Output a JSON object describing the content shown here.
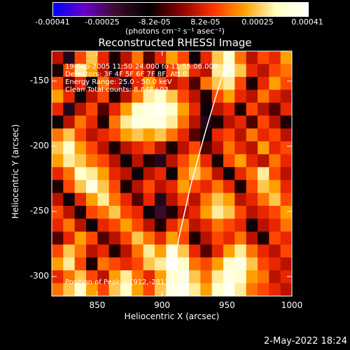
{
  "colorbar": {
    "tick_labels": [
      "-0.00041",
      "-0.00025",
      "-8.2e-05",
      "8.2e-05",
      "0.00025",
      "0.00041"
    ],
    "tick_values": [
      -0.00041,
      -0.00025,
      -8.2e-05,
      8.2e-05,
      0.00025,
      0.00041
    ],
    "range": [
      -0.00041,
      0.00041
    ],
    "units": "(photons cm⁻² s⁻¹ asec⁻²)",
    "colormap": [
      "#0000ff",
      "#6a00c8",
      "#3a0a2a",
      "#000000",
      "#8a0000",
      "#ff3000",
      "#ffa000",
      "#ffffc0",
      "#ffffff"
    ]
  },
  "chart_data": {
    "type": "heatmap",
    "title": "Reconstructed RHESSI Image",
    "xlabel": "Heliocentric X (arcsec)",
    "ylabel": "Heliocentric Y (arcsec)",
    "xlim": [
      815,
      1000
    ],
    "ylim": [
      -315,
      -127
    ],
    "xticks": [
      850,
      900,
      950,
      1000
    ],
    "yticks": [
      -150,
      -200,
      -250,
      -300
    ],
    "annotations": [
      "19-Sep-2005 11:50:24.000 to 11:55:08.000",
      "Detectors: 3F 4F 5F 6F 7F 8F, Att 0",
      "Energy Range: 25.0 - 50.0 keV",
      "Clean    Total counts: 8.84E+03"
    ],
    "peak_label": "Position of Peak = [912,-281]",
    "peak": [
      912,
      -281
    ],
    "limb_curve": {
      "x": [
        906,
        913,
        922,
        933,
        945,
        954
      ],
      "y": [
        -315,
        -270,
        -230,
        -190,
        -150,
        -127
      ]
    },
    "grid": [
      [
        0.1,
        -0.4,
        0.3,
        0.6,
        0.2,
        -0.2,
        0.1,
        0.4,
        -0.1,
        0.2,
        0.5,
        0.3,
        -0.3,
        0.2,
        0.6,
        0.8,
        0.4,
        0.1,
        0.3,
        0.2,
        0.5
      ],
      [
        -0.2,
        0.3,
        0.7,
        0.5,
        0.1,
        -0.3,
        0.2,
        0.3,
        0.1,
        -0.2,
        0.3,
        0.6,
        0.2,
        0.1,
        0.7,
        0.9,
        0.6,
        0.2,
        0.1,
        0.3,
        0.4
      ],
      [
        0.3,
        -0.1,
        0.2,
        -0.3,
        0.4,
        0.1,
        -0.4,
        0.2,
        0.5,
        0.3,
        0.1,
        0.2,
        -0.1,
        0.4,
        0.6,
        0.7,
        0.3,
        -0.2,
        0.2,
        0.5,
        0.3
      ],
      [
        0.5,
        0.2,
        -0.3,
        0.1,
        0.3,
        -0.2,
        0.1,
        0.4,
        0.7,
        0.8,
        0.6,
        0.3,
        0.1,
        -0.2,
        0.3,
        0.5,
        0.2,
        0.1,
        0.4,
        0.2,
        0.1
      ],
      [
        0.2,
        -0.4,
        0.1,
        0.3,
        -0.1,
        0.2,
        0.5,
        0.8,
        0.9,
        0.95,
        0.8,
        0.5,
        0.2,
        -0.3,
        0.1,
        0.2,
        -0.2,
        0.3,
        0.1,
        -0.1,
        0.2
      ],
      [
        -0.3,
        0.1,
        0.4,
        0.2,
        -0.2,
        0.4,
        0.7,
        0.9,
        0.85,
        0.9,
        0.7,
        0.4,
        0.1,
        -0.4,
        -0.2,
        0.1,
        0.2,
        -0.1,
        0.3,
        0.1,
        -0.2
      ],
      [
        0.4,
        0.6,
        0.3,
        0.1,
        0.2,
        0.3,
        0.5,
        0.6,
        0.5,
        0.6,
        0.4,
        0.2,
        -0.1,
        -0.3,
        0.2,
        0.3,
        0.1,
        0.4,
        0.2,
        0.3,
        0.1
      ],
      [
        0.6,
        0.8,
        0.5,
        0.3,
        0.1,
        -0.2,
        0.1,
        0.2,
        0.3,
        0.1,
        -0.2,
        0.1,
        0.3,
        -0.1,
        0.1,
        0.4,
        0.2,
        0.1,
        0.5,
        0.2,
        0.3
      ],
      [
        0.5,
        0.7,
        0.6,
        0.4,
        0.3,
        0.1,
        -0.3,
        0.1,
        -0.2,
        -0.4,
        0.1,
        0.3,
        0.5,
        0.2,
        -0.2,
        0.3,
        0.5,
        0.2,
        0.1,
        0.4,
        0.2
      ],
      [
        0.2,
        0.4,
        0.8,
        0.7,
        0.5,
        0.2,
        0.1,
        -0.3,
        0.1,
        0.2,
        -0.3,
        0.4,
        0.6,
        0.4,
        0.1,
        -0.3,
        0.2,
        0.4,
        0.7,
        0.3,
        0.1
      ],
      [
        -0.2,
        0.3,
        0.6,
        0.9,
        0.6,
        0.3,
        -0.2,
        0.1,
        0.3,
        0.1,
        0.2,
        0.5,
        0.3,
        0.2,
        0.4,
        0.2,
        -0.2,
        0.3,
        0.6,
        0.5,
        0.2
      ],
      [
        0.1,
        -0.3,
        0.2,
        0.5,
        0.7,
        0.4,
        0.2,
        -0.1,
        0.2,
        -0.4,
        0.1,
        0.3,
        0.1,
        0.4,
        0.6,
        0.5,
        0.1,
        0.2,
        0.4,
        0.6,
        0.3
      ],
      [
        0.3,
        0.1,
        -0.2,
        0.3,
        0.4,
        0.6,
        0.3,
        0.2,
        -0.3,
        -0.5,
        -0.2,
        0.1,
        0.2,
        0.5,
        0.7,
        0.6,
        0.3,
        0.1,
        0.2,
        0.3,
        0.5
      ],
      [
        0.2,
        0.4,
        0.1,
        -0.3,
        0.2,
        0.3,
        0.5,
        0.3,
        0.1,
        -0.2,
        0.2,
        0.4,
        0.1,
        0.2,
        0.4,
        0.3,
        0.2,
        -0.3,
        0.1,
        0.2,
        0.4
      ],
      [
        -0.1,
        0.2,
        0.5,
        0.3,
        -0.1,
        0.1,
        0.3,
        0.6,
        0.4,
        0.2,
        0.5,
        0.3,
        -0.2,
        0.1,
        0.3,
        0.2,
        0.4,
        0.1,
        -0.2,
        0.3,
        0.2
      ],
      [
        0.3,
        0.6,
        0.4,
        0.1,
        0.2,
        -0.2,
        0.1,
        0.4,
        0.7,
        0.5,
        0.9,
        0.6,
        0.2,
        -0.1,
        0.2,
        0.5,
        0.7,
        0.4,
        0.2,
        0.1,
        0.3
      ],
      [
        0.5,
        0.7,
        0.3,
        -0.2,
        0.4,
        0.3,
        0.2,
        0.3,
        0.6,
        0.7,
        1.0,
        0.8,
        0.4,
        0.3,
        0.5,
        0.8,
        0.9,
        0.6,
        0.3,
        0.2,
        0.1
      ],
      [
        0.2,
        0.4,
        0.6,
        0.3,
        0.1,
        0.5,
        0.7,
        0.4,
        0.2,
        0.5,
        0.8,
        0.9,
        0.6,
        0.4,
        0.7,
        0.9,
        0.8,
        0.5,
        0.4,
        0.1,
        0.2
      ],
      [
        0.4,
        0.6,
        0.8,
        0.5,
        0.3,
        0.6,
        0.8,
        0.5,
        0.3,
        0.6,
        0.9,
        0.95,
        0.7,
        0.5,
        0.8,
        0.95,
        0.7,
        0.4,
        0.3,
        0.2,
        0.1
      ]
    ]
  },
  "footer_date": "2-May-2022 18:24"
}
